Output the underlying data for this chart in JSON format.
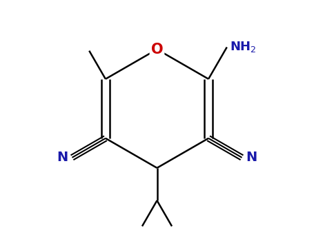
{
  "background_color": "#ffffff",
  "line_color": "#000000",
  "label_colors": {
    "O": "#cc0000",
    "NH2": "#1a1aaa",
    "CN_left": "#1a1aaa",
    "CN_right": "#1a1aaa",
    "N_left": "#1a1aaa",
    "N_right": "#1a1aaa"
  },
  "figsize": [
    4.55,
    3.5
  ],
  "dpi": 100,
  "lw": 1.8,
  "cn_lw": 1.5,
  "fontsize_O": 15,
  "fontsize_NH2": 13,
  "fontsize_N": 14
}
